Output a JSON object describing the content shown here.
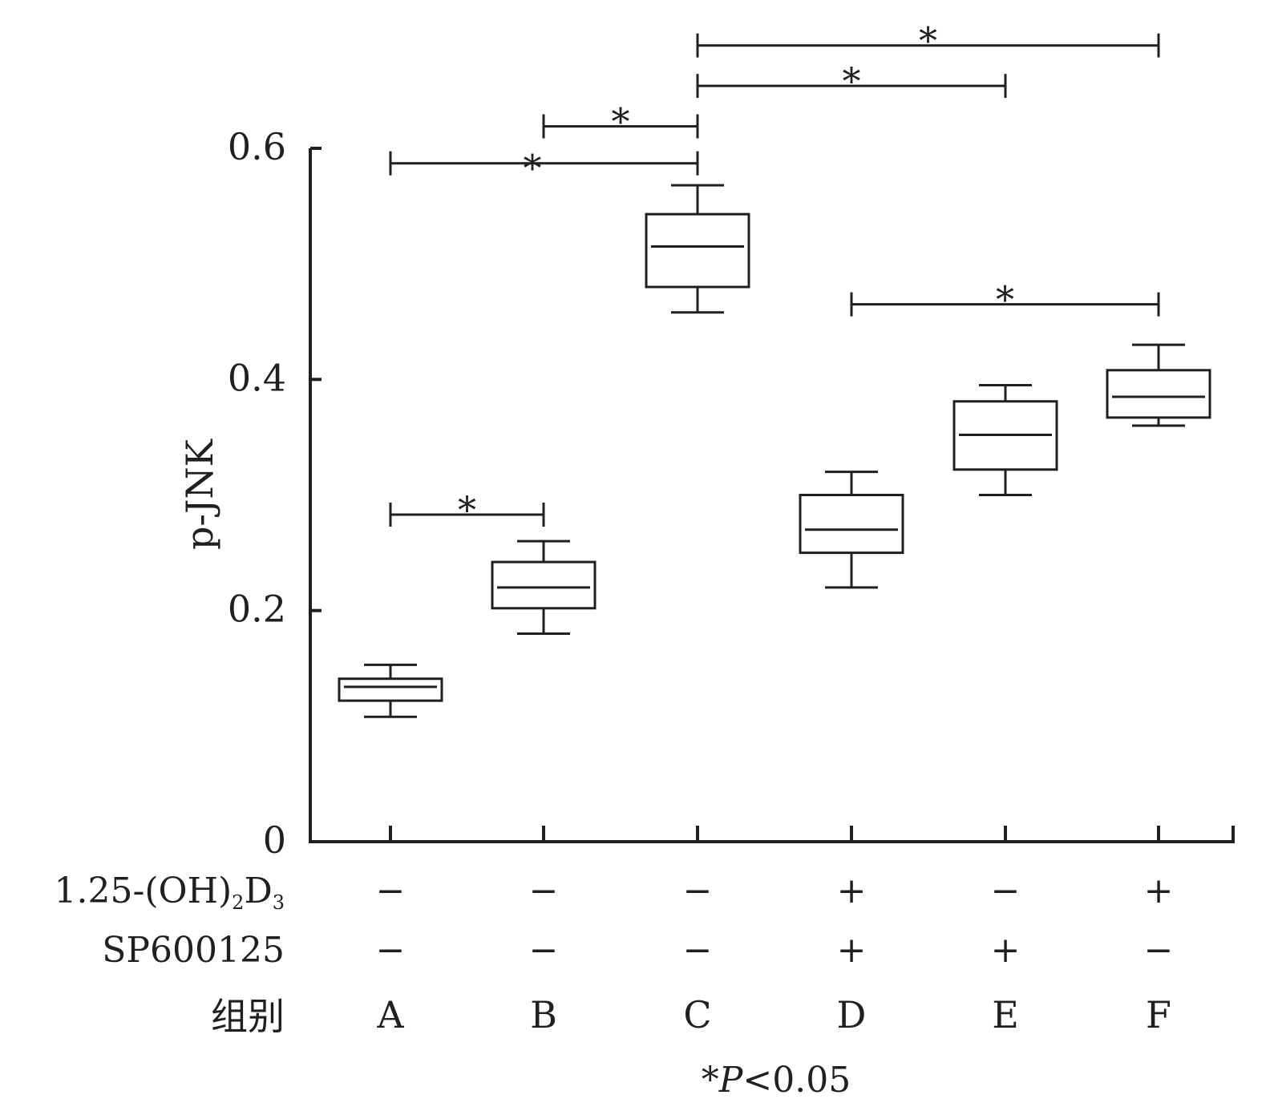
{
  "chart_data": {
    "type": "box",
    "ylabel": "p-JNK",
    "ylim": [
      0,
      0.6
    ],
    "yticks": [
      "0",
      "0.2",
      "0.4",
      "0.6"
    ],
    "ytick_values": [
      0,
      0.2,
      0.4,
      0.6
    ],
    "categories": [
      "A",
      "B",
      "C",
      "D",
      "E",
      "F"
    ],
    "boxes": [
      {
        "group": "A",
        "whisker_low": 0.108,
        "q1": 0.122,
        "median": 0.134,
        "q3": 0.141,
        "whisker_high": 0.153
      },
      {
        "group": "B",
        "whisker_low": 0.18,
        "q1": 0.202,
        "median": 0.22,
        "q3": 0.242,
        "whisker_high": 0.26
      },
      {
        "group": "C",
        "whisker_low": 0.458,
        "q1": 0.48,
        "median": 0.515,
        "q3": 0.543,
        "whisker_high": 0.568
      },
      {
        "group": "D",
        "whisker_low": 0.22,
        "q1": 0.25,
        "median": 0.27,
        "q3": 0.3,
        "whisker_high": 0.32
      },
      {
        "group": "E",
        "whisker_low": 0.3,
        "q1": 0.322,
        "median": 0.352,
        "q3": 0.381,
        "whisker_high": 0.395
      },
      {
        "group": "F",
        "whisker_low": 0.36,
        "q1": 0.367,
        "median": 0.385,
        "q3": 0.408,
        "whisker_high": 0.43
      }
    ],
    "treatment_rows": [
      {
        "label": "1.25-(OH)",
        "sub1": "2",
        "label2": "D",
        "sub2": "3",
        "values": [
          "−",
          "−",
          "−",
          "+",
          "−",
          "+"
        ]
      },
      {
        "label": "SP600125",
        "values": [
          "−",
          "−",
          "−",
          "+",
          "+",
          "−"
        ]
      }
    ],
    "group_row_label": "组别",
    "significance": [
      {
        "from": "A",
        "to": "B",
        "y": 0.283,
        "mark": "*"
      },
      {
        "from": "A",
        "to": "C",
        "y": 0.587,
        "mark": "*"
      },
      {
        "from": "B",
        "to": "C",
        "y": 0.619,
        "mark": "*"
      },
      {
        "from": "C",
        "to": "E",
        "y": 0.654,
        "mark": "*"
      },
      {
        "from": "C",
        "to": "F",
        "y": 0.689,
        "mark": "*"
      },
      {
        "from": "D",
        "to": "F",
        "y": 0.465,
        "mark": "*"
      }
    ],
    "footnote": {
      "mark": "*",
      "p": "P",
      "rest": "<0.05"
    }
  }
}
